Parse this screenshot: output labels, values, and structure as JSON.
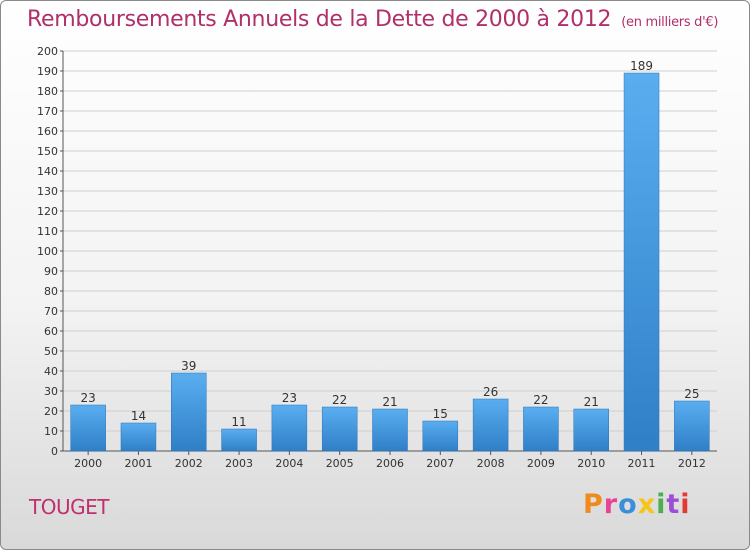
{
  "header": {
    "title": "Remboursements Annuels de la Dette de 2000 à 2012",
    "unit": "(en milliers d'€)"
  },
  "footer": {
    "commune": "TOUGET",
    "logo_text": "Proxiti",
    "logo_colors": [
      "#f08a1c",
      "#e84393",
      "#3a8fd8",
      "#f5c518",
      "#4caf50",
      "#9c4fd6",
      "#e53935"
    ]
  },
  "colors": {
    "title": "#b0306a",
    "bar_top": "#5aaef0",
    "bar_bottom": "#2f7fc7",
    "grid": "#cfcfcf"
  },
  "chart_data": {
    "type": "bar",
    "categories": [
      "2000",
      "2001",
      "2002",
      "2003",
      "2004",
      "2005",
      "2006",
      "2007",
      "2008",
      "2009",
      "2010",
      "2011",
      "2012"
    ],
    "values": [
      23,
      14,
      39,
      11,
      23,
      22,
      21,
      15,
      26,
      22,
      21,
      189,
      25
    ],
    "data_labels": [
      "23",
      "14",
      "39",
      "11",
      "23",
      "22",
      "21",
      "15",
      "26",
      "22",
      "21",
      "189",
      "25"
    ],
    "yticks": [
      0,
      10,
      20,
      30,
      40,
      50,
      60,
      70,
      80,
      90,
      100,
      110,
      120,
      130,
      140,
      150,
      160,
      170,
      180,
      190,
      200
    ],
    "ylim": [
      0,
      200
    ],
    "grid": true,
    "legend": "none"
  }
}
